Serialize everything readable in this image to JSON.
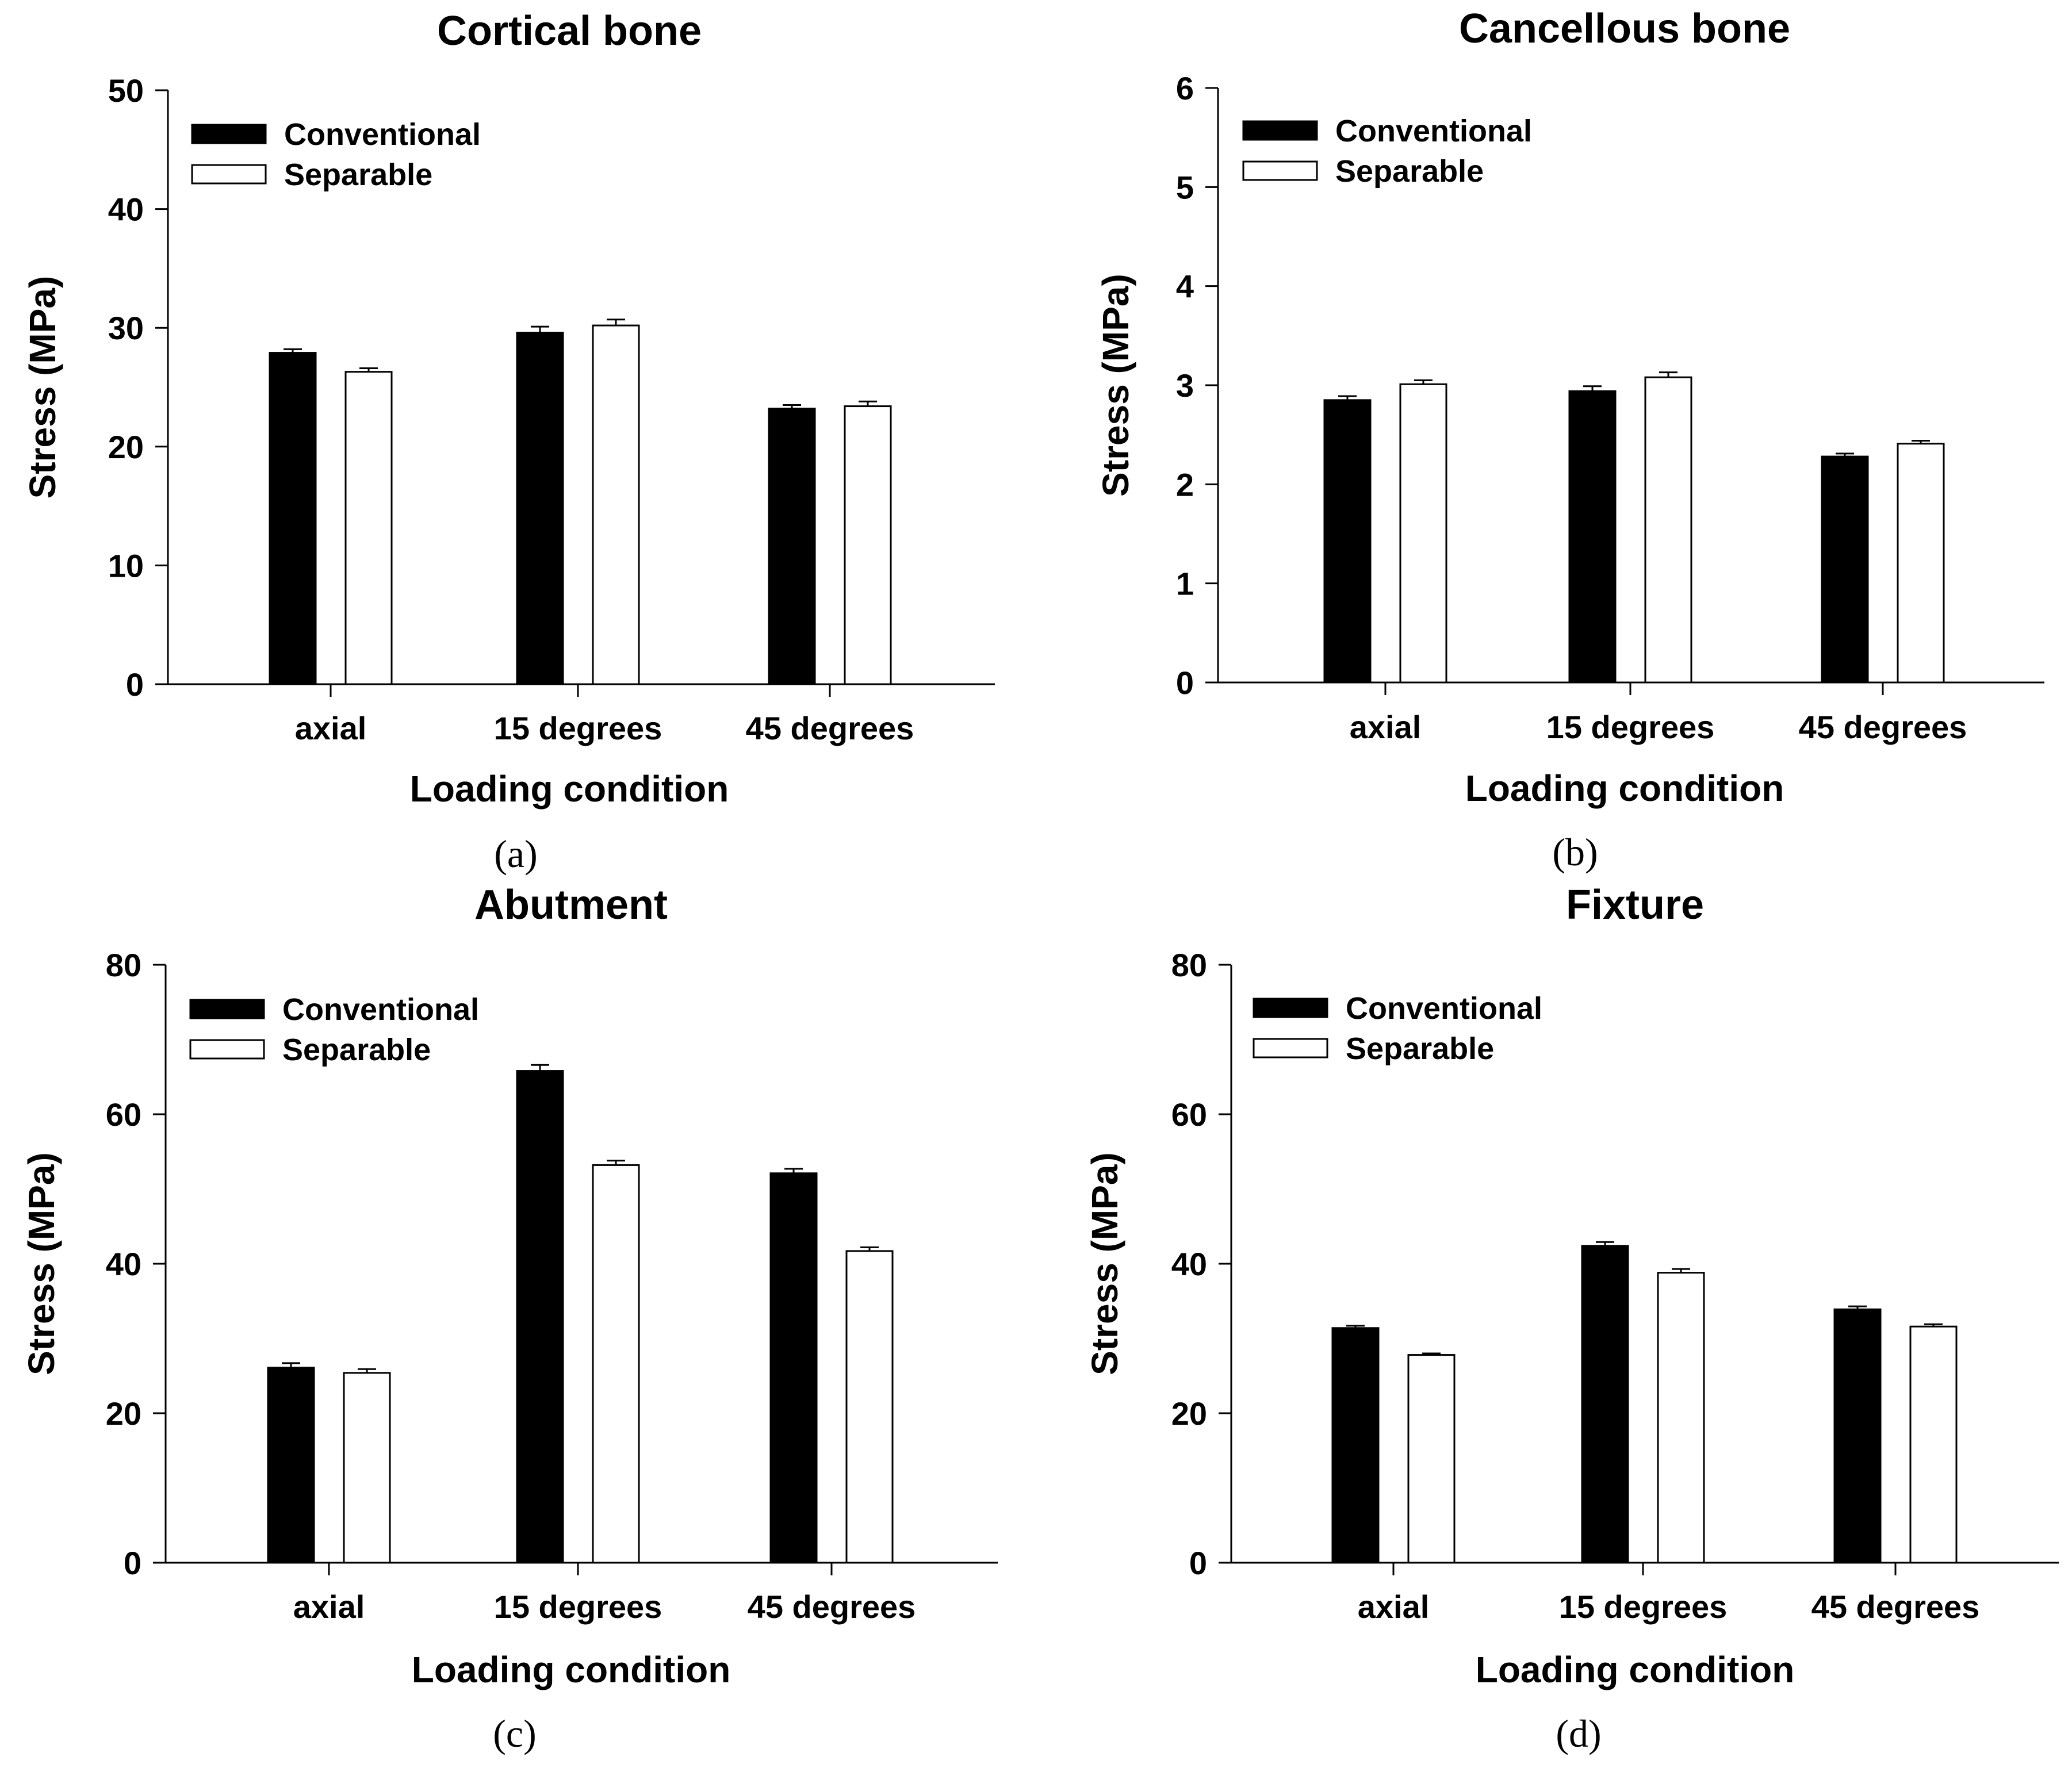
{
  "chart_data": [
    {
      "panel": "(a)",
      "type": "bar",
      "title": "Cortical bone",
      "xlabel": "Loading condition",
      "ylabel": "Stress (MPa)",
      "categories": [
        "axial",
        "15 degrees",
        "45 degrees"
      ],
      "ylim": [
        0,
        50
      ],
      "yticks": [
        0,
        10,
        20,
        30,
        40,
        50
      ],
      "legend_position": "top-left",
      "series": [
        {
          "name": "Conventional",
          "color": "#000000",
          "values": [
            27.9,
            29.6,
            23.2
          ],
          "errors": [
            0.3,
            0.5,
            0.3
          ]
        },
        {
          "name": "Separable",
          "color": "#ffffff",
          "values": [
            26.3,
            30.2,
            23.4
          ],
          "errors": [
            0.3,
            0.5,
            0.4
          ]
        }
      ]
    },
    {
      "panel": "(b)",
      "type": "bar",
      "title": "Cancellous bone",
      "xlabel": "Loading condition",
      "ylabel": "Stress (MPa)",
      "categories": [
        "axial",
        "15 degrees",
        "45 degrees"
      ],
      "ylim": [
        0,
        6
      ],
      "yticks": [
        0,
        1,
        2,
        3,
        4,
        5,
        6
      ],
      "legend_position": "top-left",
      "series": [
        {
          "name": "Conventional",
          "color": "#000000",
          "values": [
            2.85,
            2.94,
            2.28
          ],
          "errors": [
            0.04,
            0.05,
            0.03
          ]
        },
        {
          "name": "Separable",
          "color": "#ffffff",
          "values": [
            3.01,
            3.08,
            2.41
          ],
          "errors": [
            0.04,
            0.05,
            0.03
          ]
        }
      ]
    },
    {
      "panel": "(c)",
      "type": "bar",
      "title": "Abutment",
      "xlabel": "Loading condition",
      "ylabel": "Stress (MPa)",
      "categories": [
        "axial",
        "15 degrees",
        "45 degrees"
      ],
      "ylim": [
        0,
        80
      ],
      "yticks": [
        0,
        20,
        40,
        60,
        80
      ],
      "legend_position": "top-left",
      "series": [
        {
          "name": "Conventional",
          "color": "#000000",
          "values": [
            26.1,
            65.8,
            52.1
          ],
          "errors": [
            0.6,
            0.8,
            0.6
          ]
        },
        {
          "name": "Separable",
          "color": "#ffffff",
          "values": [
            25.4,
            53.2,
            41.7
          ],
          "errors": [
            0.5,
            0.6,
            0.5
          ]
        }
      ]
    },
    {
      "panel": "(d)",
      "type": "bar",
      "title": "Fixture",
      "xlabel": "Loading condition",
      "ylabel": "Stress (MPa)",
      "categories": [
        "axial",
        "15 degrees",
        "45 degrees"
      ],
      "ylim": [
        0,
        80
      ],
      "yticks": [
        0,
        20,
        40,
        60,
        80
      ],
      "legend_position": "top-left",
      "series": [
        {
          "name": "Conventional",
          "color": "#000000",
          "values": [
            31.4,
            42.4,
            33.9
          ],
          "errors": [
            0.3,
            0.5,
            0.4
          ]
        },
        {
          "name": "Separable",
          "color": "#ffffff",
          "values": [
            27.8,
            38.8,
            31.6
          ],
          "errors": [
            0.2,
            0.5,
            0.3
          ]
        }
      ]
    }
  ]
}
